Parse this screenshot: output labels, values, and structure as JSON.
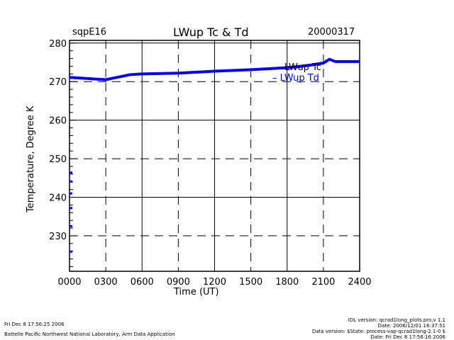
{
  "header": {
    "site": "sqpE16",
    "title": "LWup Tc & Td",
    "date": "20000317"
  },
  "chart_data": {
    "type": "line",
    "title": "LWup Tc & Td",
    "xlabel": "Time (UT)",
    "ylabel": "Temperature, Degree K",
    "xlim": [
      0,
      24
    ],
    "ylim": [
      220.8,
      280.7
    ],
    "xticks": [
      0,
      3,
      6,
      9,
      12,
      15,
      18,
      21,
      24
    ],
    "xtick_labels": [
      "0000",
      "0300",
      "0600",
      "0900",
      "1200",
      "1500",
      "1800",
      "2100",
      "2400"
    ],
    "yticks": [
      230,
      240,
      250,
      260,
      270,
      280
    ],
    "ytick_labels": [
      "230",
      "240",
      "250",
      "260",
      "270",
      "280"
    ],
    "grid": true,
    "legend": "top-right",
    "series": [
      {
        "name": "LWup Tc",
        "color": "#000000",
        "x": [
          0,
          3,
          5,
          6,
          9,
          12,
          15,
          18,
          19,
          20,
          21,
          21.5,
          22,
          24
        ],
        "y": [
          271.1,
          270.5,
          271.8,
          272.0,
          272.2,
          272.7,
          273.1,
          273.8,
          274.1,
          274.5,
          275.0,
          275.8,
          275.2,
          275.2
        ]
      },
      {
        "name": "LWup Td",
        "color": "#0000ff",
        "x": [
          0,
          3,
          5,
          6,
          9,
          12,
          15,
          18,
          19,
          20,
          21,
          21.5,
          22,
          24
        ],
        "y": [
          271.1,
          270.5,
          271.8,
          272.0,
          272.2,
          272.7,
          273.1,
          273.6,
          273.9,
          274.3,
          274.8,
          275.8,
          275.2,
          275.2
        ],
        "scatter_x": [
          0,
          0,
          0,
          0,
          0,
          0
        ],
        "scatter_y": [
          246.4,
          244.1,
          241.0,
          237.2,
          232.5,
          225.9
        ]
      }
    ]
  },
  "footer": {
    "print_date": "Fri Dec  8 17:56:25 2006",
    "org": "Battelle Pacific Northwest National Laboratory, Arm Data Application",
    "idl_version": "IDL version: qcrad1long_plots.pro,v 1.1",
    "idl_date": "Date: 2006/12/01 16:37:51",
    "data_version": "Data version: $State: process-vap-qcrad1long-2.1-0 $",
    "data_date": "Date: Fri Dec  8 17:56:16 2006"
  }
}
